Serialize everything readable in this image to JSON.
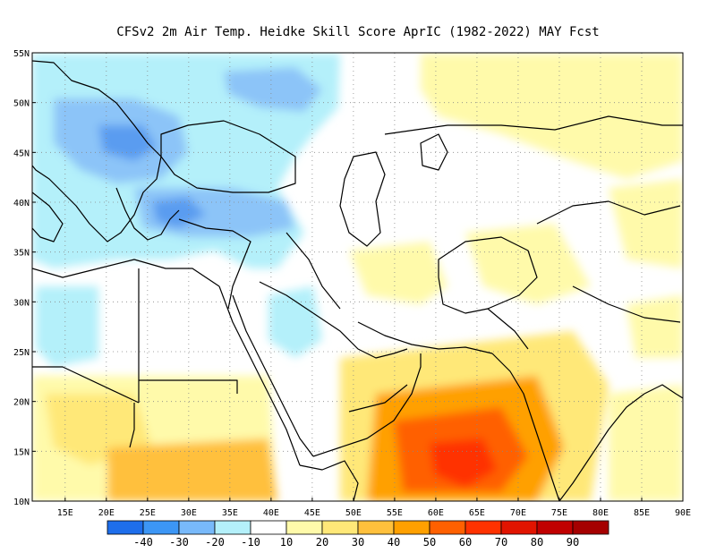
{
  "title": "CFSv2  2m Air Temp. Heidke Skill Score AprIC (1982-2022) MAY Fcst",
  "lat_labels": [
    "55N",
    "50N",
    "45N",
    "40N",
    "35N",
    "30N",
    "25N",
    "20N",
    "15N",
    "10N"
  ],
  "lon_labels": [
    "15E",
    "20E",
    "25E",
    "30E",
    "35E",
    "40E",
    "45E",
    "50E",
    "55E",
    "60E",
    "65E",
    "70E",
    "75E",
    "80E",
    "85E",
    "90E"
  ],
  "colorbar": {
    "colors": [
      "#1e6eeb",
      "#3c96f5",
      "#78b9fa",
      "#b4f0fa",
      "#ffffff",
      "#fffaaa",
      "#ffe878",
      "#ffc03c",
      "#ffa000",
      "#ff6000",
      "#ff3200",
      "#e11400",
      "#c00000",
      "#a50000"
    ],
    "labels": [
      "-40",
      "-30",
      "-20",
      "-10",
      "10",
      "20",
      "30",
      "40",
      "50",
      "60",
      "70",
      "80",
      "90"
    ]
  },
  "colors": {
    "blue_dark": "#5a9cf0",
    "blue_mid": "#8cc4f8",
    "blue_light": "#b4f0fa",
    "yellow_light": "#fffaaa",
    "yellow": "#ffe878",
    "orange_light": "#ffc03c",
    "orange": "#ffa000",
    "orange_dark": "#ff6000",
    "red": "#ff3200",
    "red_dark": "#e11400"
  }
}
